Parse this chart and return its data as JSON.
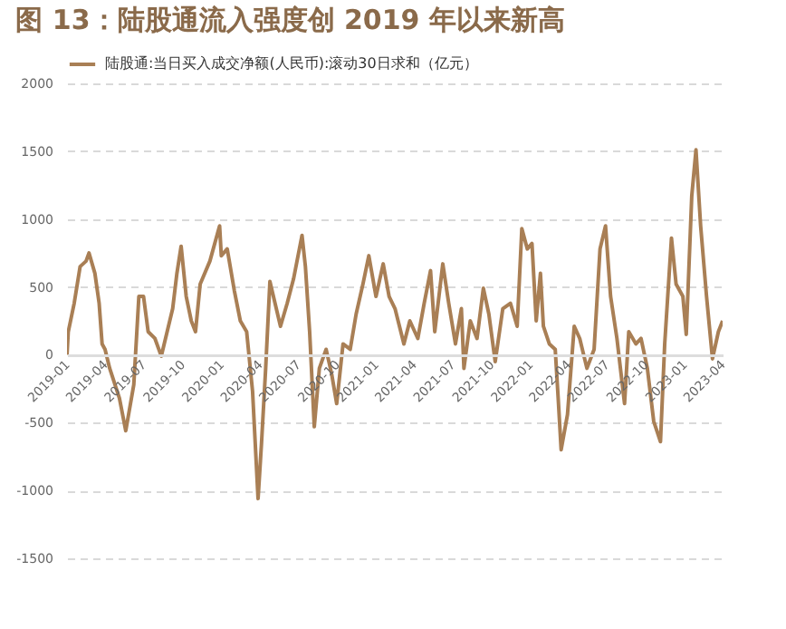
{
  "chart_data": {
    "type": "line",
    "title": "图 13：陆股通流入强度创 2019 年以来新高",
    "x": [
      "2019-01-01",
      "2019-01-04",
      "2019-01-18",
      "2019-02-01",
      "2019-02-15",
      "2019-02-22",
      "2019-03-08",
      "2019-03-18",
      "2019-03-25",
      "2019-04-01",
      "2019-04-12",
      "2019-05-05",
      "2019-05-20",
      "2019-06-08",
      "2019-06-20",
      "2019-07-01",
      "2019-07-12",
      "2019-07-28",
      "2019-08-12",
      "2019-09-08",
      "2019-09-18",
      "2019-09-28",
      "2019-10-10",
      "2019-10-22",
      "2019-11-01",
      "2019-11-12",
      "2019-12-05",
      "2019-12-28",
      "2020-01-01",
      "2020-01-15",
      "2020-02-01",
      "2020-02-15",
      "2020-03-01",
      "2020-03-15",
      "2020-03-28",
      "2020-04-05",
      "2020-04-15",
      "2020-04-25",
      "2020-05-20",
      "2020-06-05",
      "2020-06-20",
      "2020-07-10",
      "2020-07-18",
      "2020-07-28",
      "2020-08-08",
      "2020-08-20",
      "2020-09-05",
      "2020-09-18",
      "2020-09-30",
      "2020-10-15",
      "2020-11-01",
      "2020-11-15",
      "2020-12-01",
      "2020-12-15",
      "2021-01-01",
      "2021-01-18",
      "2021-02-01",
      "2021-02-15",
      "2021-03-08",
      "2021-03-22",
      "2021-04-10",
      "2021-04-25",
      "2021-05-10",
      "2021-05-20",
      "2021-06-08",
      "2021-06-22",
      "2021-07-08",
      "2021-07-22",
      "2021-07-28",
      "2021-08-12",
      "2021-08-28",
      "2021-09-12",
      "2021-09-25",
      "2021-10-10",
      "2021-10-28",
      "2021-11-15",
      "2021-12-01",
      "2021-12-12",
      "2021-12-25",
      "2022-01-05",
      "2022-01-15",
      "2022-01-25",
      "2022-02-01",
      "2022-02-15",
      "2022-03-01",
      "2022-03-08",
      "2022-03-15",
      "2022-03-30",
      "2022-04-15",
      "2022-04-28",
      "2022-05-15",
      "2022-06-01",
      "2022-06-15",
      "2022-06-28",
      "2022-07-10",
      "2022-07-25",
      "2022-08-12",
      "2022-08-22",
      "2022-09-08",
      "2022-09-20",
      "2022-10-05",
      "2022-10-20",
      "2022-11-05",
      "2022-11-15",
      "2022-12-01",
      "2022-12-12",
      "2022-12-28",
      "2023-01-05",
      "2023-01-18",
      "2023-01-28",
      "2023-02-08",
      "2023-02-22",
      "2023-03-08",
      "2023-03-22",
      "2023-04-01"
    ],
    "series": [
      {
        "name": "陆股通:当日买入成交净额(人民币):滚动30日求和（亿元）",
        "color": "#a97f55",
        "values": [
          0,
          170,
          380,
          650,
          690,
          750,
          600,
          380,
          80,
          40,
          -100,
          -320,
          -560,
          -220,
          430,
          430,
          170,
          120,
          -10,
          340,
          600,
          800,
          430,
          250,
          170,
          520,
          690,
          950,
          730,
          780,
          470,
          250,
          170,
          -270,
          -1060,
          -660,
          -100,
          540,
          210,
          380,
          560,
          880,
          650,
          170,
          -530,
          -100,
          40,
          -140,
          -360,
          80,
          40,
          300,
          520,
          730,
          430,
          670,
          430,
          340,
          80,
          250,
          120,
          380,
          620,
          170,
          670,
          380,
          80,
          340,
          -100,
          250,
          120,
          490,
          300,
          -50,
          340,
          380,
          210,
          930,
          780,
          820,
          250,
          600,
          210,
          80,
          40,
          -320,
          -700,
          -440,
          210,
          120,
          -100,
          40,
          780,
          950,
          430,
          120,
          -360,
          170,
          80,
          120,
          -100,
          -490,
          -640,
          80,
          860,
          520,
          430,
          150,
          1170,
          1510,
          950,
          430,
          -30,
          170,
          250
        ]
      }
    ],
    "xlim": [
      "2019-01-01",
      "2023-04-01"
    ],
    "xticks": [
      {
        "value": "2019-01-01",
        "label": "2019-01"
      },
      {
        "value": "2019-04-01",
        "label": "2019-04"
      },
      {
        "value": "2019-07-01",
        "label": "2019-07"
      },
      {
        "value": "2019-10-01",
        "label": "2019-10"
      },
      {
        "value": "2020-01-01",
        "label": "2020-01"
      },
      {
        "value": "2020-04-01",
        "label": "2020-04"
      },
      {
        "value": "2020-07-01",
        "label": "2020-07"
      },
      {
        "value": "2020-10-01",
        "label": "2020-10"
      },
      {
        "value": "2021-01-01",
        "label": "2021-01"
      },
      {
        "value": "2021-04-01",
        "label": "2021-04"
      },
      {
        "value": "2021-07-01",
        "label": "2021-07"
      },
      {
        "value": "2021-10-01",
        "label": "2021-10"
      },
      {
        "value": "2022-01-01",
        "label": "2022-01"
      },
      {
        "value": "2022-04-01",
        "label": "2022-04"
      },
      {
        "value": "2022-07-01",
        "label": "2022-07"
      },
      {
        "value": "2022-10-01",
        "label": "2022-10"
      },
      {
        "value": "2023-01-01",
        "label": "2023-01"
      },
      {
        "value": "2023-04-01",
        "label": "2023-04"
      }
    ],
    "ylim": [
      -1500,
      2000
    ],
    "yticks": [
      -1500,
      -1000,
      -500,
      0,
      500,
      1000,
      1500,
      2000
    ],
    "grid": "y",
    "legend": "top",
    "marker": "none",
    "line_style": "solid"
  }
}
